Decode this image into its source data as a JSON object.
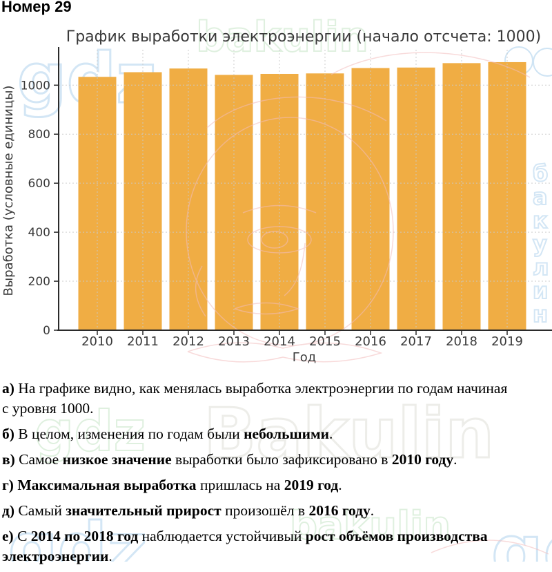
{
  "header": {
    "title": "Номер 29"
  },
  "chart_data": {
    "type": "bar",
    "title": "График выработки электроэнергии (начало отсчета: 1000)",
    "xlabel": "Год",
    "ylabel": "Выработка (условные единицы)",
    "categories": [
      "2010",
      "2011",
      "2012",
      "2013",
      "2014",
      "2015",
      "2016",
      "2017",
      "2018",
      "2019"
    ],
    "values": [
      1034,
      1053,
      1068,
      1042,
      1046,
      1048,
      1070,
      1072,
      1090,
      1094
    ],
    "ylim": [
      0,
      1136
    ],
    "yticks": [
      0,
      200,
      400,
      600,
      800,
      1000
    ],
    "bar_color": "#F0AD44",
    "grid": true,
    "legend": false
  },
  "answers": [
    {
      "id": "a",
      "segments": [
        {
          "t": "а)",
          "b": true
        },
        {
          "t": " На графике видно, как менялась выработка электроэнергии по годам начиная\nс уровня 1000.",
          "b": false
        }
      ]
    },
    {
      "id": "b",
      "segments": [
        {
          "t": "б)",
          "b": true
        },
        {
          "t": " В целом, изменения по годам были ",
          "b": false
        },
        {
          "t": "небольшими",
          "b": true
        },
        {
          "t": ".",
          "b": false
        }
      ]
    },
    {
      "id": "v",
      "segments": [
        {
          "t": "в)",
          "b": true
        },
        {
          "t": " Самое ",
          "b": false
        },
        {
          "t": "низкое значение",
          "b": true
        },
        {
          "t": " выработки было зафиксировано в ",
          "b": false
        },
        {
          "t": "2010 году",
          "b": true
        },
        {
          "t": ".",
          "b": false
        }
      ]
    },
    {
      "id": "g",
      "segments": [
        {
          "t": "г)",
          "b": true
        },
        {
          "t": " ",
          "b": false
        },
        {
          "t": "Максимальная выработка",
          "b": true
        },
        {
          "t": " пришлась на ",
          "b": false
        },
        {
          "t": "2019 год",
          "b": true
        },
        {
          "t": ".",
          "b": false
        }
      ]
    },
    {
      "id": "d",
      "segments": [
        {
          "t": "д)",
          "b": true
        },
        {
          "t": " Самый ",
          "b": false
        },
        {
          "t": "значительный прирост",
          "b": true
        },
        {
          "t": " произошёл в ",
          "b": false
        },
        {
          "t": "2016 году",
          "b": true
        },
        {
          "t": ".",
          "b": false
        }
      ]
    },
    {
      "id": "e",
      "segments": [
        {
          "t": "е)",
          "b": true
        },
        {
          "t": " С ",
          "b": false
        },
        {
          "t": "2014 по 2018 год",
          "b": true
        },
        {
          "t": " наблюдается устойчивый ",
          "b": false
        },
        {
          "t": "рост объёмов производства\nэлектроэнергии",
          "b": true
        },
        {
          "t": ".",
          "b": false
        }
      ]
    }
  ],
  "watermarks": [
    {
      "text": "gdz",
      "area": "chart-top-left"
    },
    {
      "text": "bakulin",
      "area": "title-right"
    },
    {
      "text": "бакулин",
      "area": "chart-right-vertical"
    },
    {
      "text": "gdz",
      "area": "answers-mid-left"
    },
    {
      "text": "Bakulin",
      "area": "answers-mid-center"
    },
    {
      "text": "gdz",
      "area": "answers-bottom-left"
    },
    {
      "text": "bakulin",
      "area": "answers-bottom-center"
    },
    {
      "text": "gdz",
      "area": "answers-bottom-right"
    }
  ],
  "colors": {
    "bar": "#F0AD44",
    "axis": "#2B2B2B",
    "text": "#3A3A3A",
    "grid": "#C9C9C9",
    "wm_blue": "#CFE4F4",
    "wm_green": "#DCEFDC",
    "wm_gray": "#ECECE7",
    "wm_red": "#F2BCBC"
  }
}
